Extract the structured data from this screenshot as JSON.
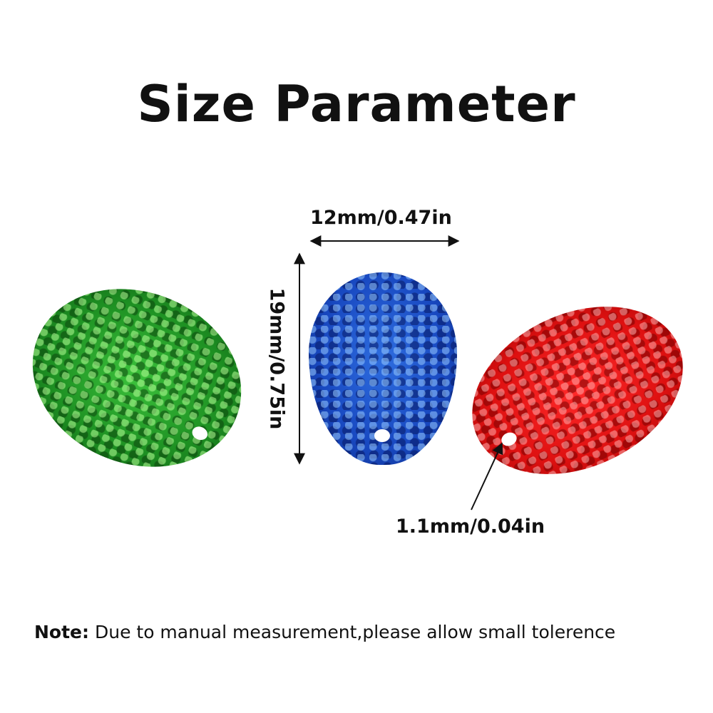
{
  "title": "Size Parameter",
  "dimensions": {
    "width": "12mm/0.47in",
    "length": "19mm/0.75in",
    "hole": "1.1mm/0.04in"
  },
  "note": {
    "label": "Note:",
    "text": "Due to manual measurement,please allow small tolerence"
  },
  "colors": {
    "green": "#1d8f22",
    "blue": "#1848c0",
    "red": "#dd1010"
  }
}
